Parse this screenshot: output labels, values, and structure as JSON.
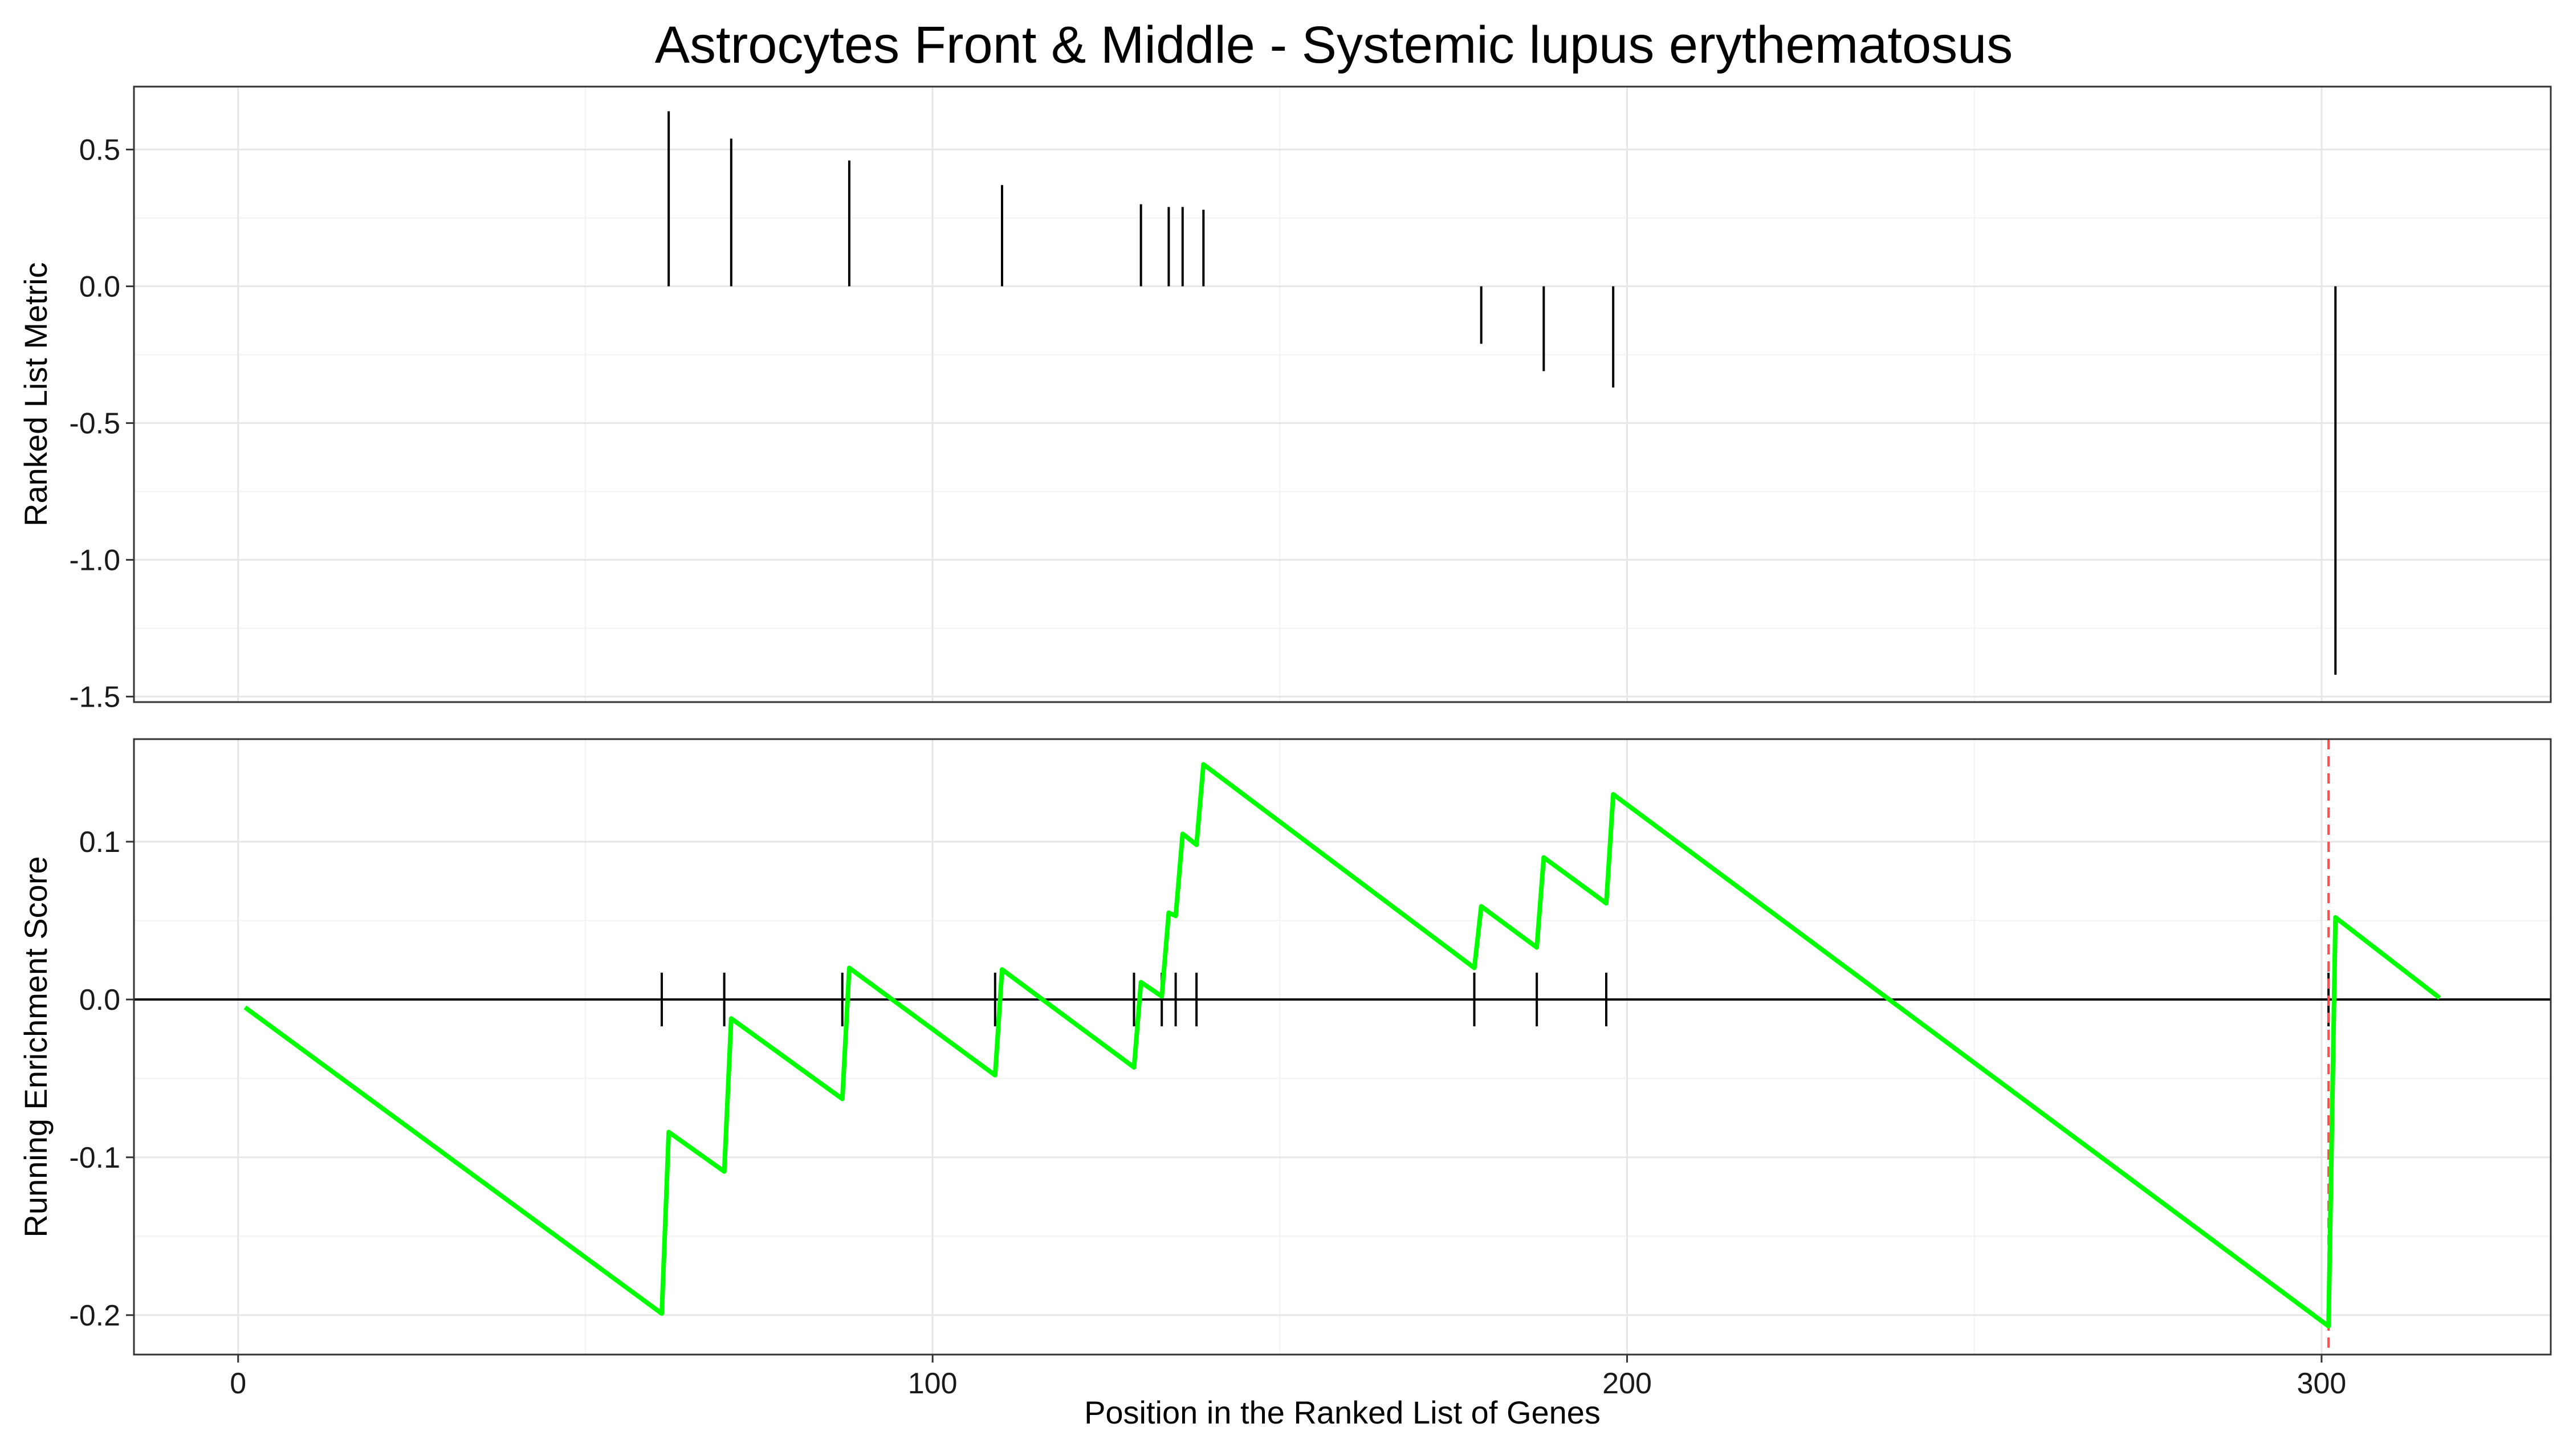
{
  "chart_data": {
    "type": "line",
    "title": "Astrocytes Front & Middle - Systemic lupus erythematosus",
    "xlabel": "Position in the Ranked List of Genes",
    "xlim": [
      -15,
      333
    ],
    "x_ticks": [
      {
        "value": 0,
        "label": "0"
      },
      {
        "value": 100,
        "label": "100"
      },
      {
        "value": 200,
        "label": "200"
      },
      {
        "value": 300,
        "label": "300"
      }
    ],
    "grid": true,
    "panels": [
      {
        "id": "ranked-metric",
        "ylabel": "Ranked List Metric",
        "ylim": [
          -1.52,
          0.73
        ],
        "y_ticks": [
          {
            "value": 0.5,
            "label": "0.5"
          },
          {
            "value": 0.0,
            "label": "0.0"
          },
          {
            "value": -0.5,
            "label": "-0.5"
          },
          {
            "value": -1.0,
            "label": "-1.0"
          },
          {
            "value": -1.5,
            "label": "-1.5"
          }
        ],
        "bars": [
          {
            "x": 62,
            "y": 0.64
          },
          {
            "x": 71,
            "y": 0.54
          },
          {
            "x": 88,
            "y": 0.46
          },
          {
            "x": 110,
            "y": 0.37
          },
          {
            "x": 130,
            "y": 0.3
          },
          {
            "x": 134,
            "y": 0.29
          },
          {
            "x": 136,
            "y": 0.29
          },
          {
            "x": 139,
            "y": 0.28
          },
          {
            "x": 179,
            "y": -0.21
          },
          {
            "x": 188,
            "y": -0.31
          },
          {
            "x": 198,
            "y": -0.37
          },
          {
            "x": 302,
            "y": -1.42
          }
        ]
      },
      {
        "id": "running-es",
        "ylabel": "Running Enrichment Score",
        "ylim": [
          -0.225,
          0.165
        ],
        "y_ticks": [
          {
            "value": 0.1,
            "label": "0.1"
          },
          {
            "value": 0.0,
            "label": "0.0"
          },
          {
            "value": -0.1,
            "label": "-0.1"
          },
          {
            "value": -0.2,
            "label": "-0.2"
          }
        ],
        "line_color": "#00ff00",
        "es_line": {
          "x": [
            1,
            61,
            62,
            70,
            71,
            87,
            88,
            109,
            110,
            129,
            130,
            133,
            134,
            135,
            136,
            138,
            139,
            178,
            179,
            187,
            188,
            197,
            198,
            301,
            302,
            317
          ],
          "y": [
            -0.005,
            -0.199,
            -0.084,
            -0.109,
            -0.012,
            -0.063,
            0.02,
            -0.048,
            0.019,
            -0.043,
            0.011,
            0.002,
            0.055,
            0.053,
            0.105,
            0.098,
            0.149,
            0.02,
            0.059,
            0.033,
            0.09,
            0.061,
            0.13,
            -0.207,
            0.052,
            0.001
          ]
        },
        "hit_marks": [
          61,
          70,
          87,
          109,
          129,
          133,
          135,
          138,
          178,
          187,
          197,
          301
        ],
        "max_dev_x": 301,
        "max_dev_color": "#ff4d4d"
      }
    ]
  }
}
